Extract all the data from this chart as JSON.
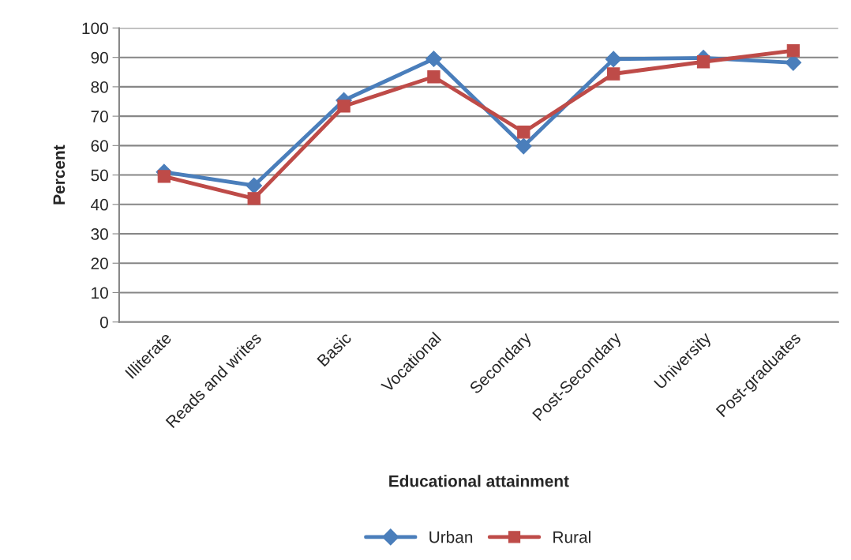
{
  "chart_data": {
    "type": "line",
    "xlabel": "Educational attainment",
    "ylabel": "Percent",
    "categories": [
      "Illiterate",
      "Reads and writes",
      "Basic",
      "Vocational",
      "Secondary",
      "Post-Secondary",
      "University",
      "Post-graduates"
    ],
    "series": [
      {
        "name": "Urban",
        "color": "#4a7ebb",
        "marker": "diamond",
        "values": [
          51,
          46.4,
          75.4,
          89.5,
          59.8,
          89.4,
          89.8,
          88.2
        ]
      },
      {
        "name": "Rural",
        "color": "#be4b48",
        "marker": "square",
        "values": [
          49.5,
          42,
          73.4,
          83.4,
          64.6,
          84.4,
          88.5,
          92.3
        ]
      }
    ],
    "ylim": [
      0,
      100
    ],
    "yticks": [
      0,
      10,
      20,
      30,
      40,
      50,
      60,
      70,
      80,
      90,
      100
    ],
    "grid": "y",
    "legend": "bottom",
    "line_style": "solid"
  }
}
